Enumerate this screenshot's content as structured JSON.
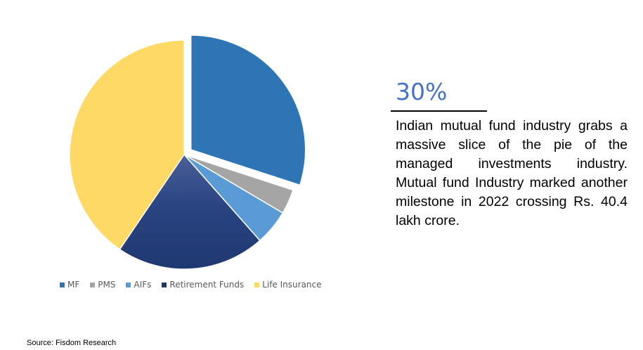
{
  "chart_data": {
    "type": "pie",
    "title": "",
    "categories": [
      "MF",
      "PMS",
      "AIFs",
      "Retirement Funds",
      "Life Insurance"
    ],
    "values": [
      30,
      3.5,
      5,
      21,
      40.5
    ],
    "colors": [
      "#2e75b6",
      "#a5a5a5",
      "#5b9bd5",
      "#203864",
      "#ffd966"
    ],
    "exploded": "MF",
    "legend": "bottom"
  },
  "callout": {
    "value": "30%",
    "text": "Indian mutual fund industry grabs a massive slice of the pie of the managed investments industry. Mutual fund Industry marked another milestone in 2022 crossing Rs. 40.4 lakh crore."
  },
  "source": "Source: Fisdom Research"
}
